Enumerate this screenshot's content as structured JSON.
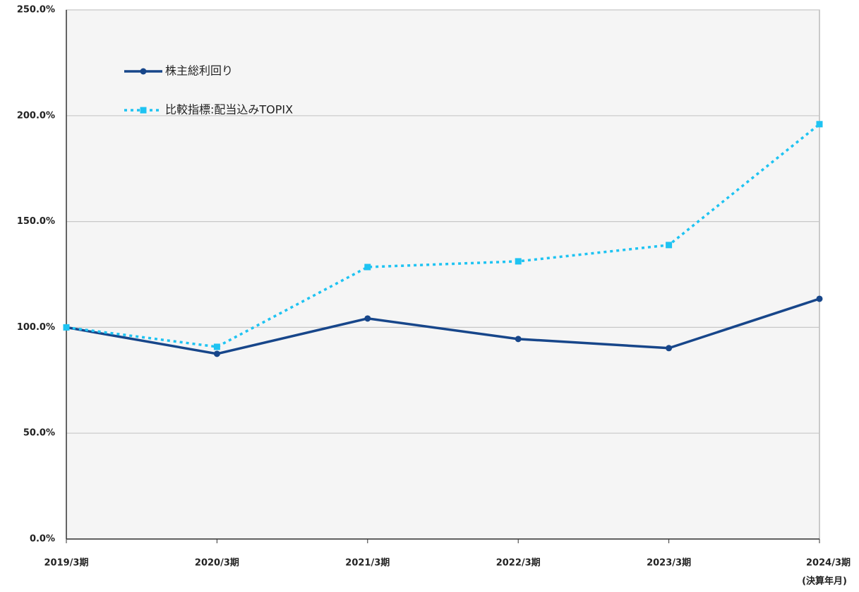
{
  "chart_data": {
    "type": "line",
    "categories": [
      "2019/3期",
      "2020/3期",
      "2021/3期",
      "2022/3期",
      "2023/3期",
      "2024/3期"
    ],
    "x_label": "(決算年月)",
    "series": [
      {
        "name": "株主総利回り",
        "color": "#17468a",
        "dash": "solid",
        "marker": "circle",
        "values": [
          100,
          87.5,
          104.2,
          94.5,
          90.2,
          113.5
        ]
      },
      {
        "name": "比較指標:配当込みTOPIX",
        "color": "#1ec3f2",
        "dash": "dotted",
        "marker": "square",
        "values": [
          100,
          90.8,
          128.5,
          131.2,
          138.9,
          196
        ]
      }
    ],
    "ylim": [
      0,
      250
    ],
    "yticks": [
      {
        "value": 0,
        "label": "0.0%"
      },
      {
        "value": 50,
        "label": "50.0%"
      },
      {
        "value": 100,
        "label": "100.0%"
      },
      {
        "value": 150,
        "label": "150.0%"
      },
      {
        "value": 200,
        "label": "200.0%"
      },
      {
        "value": 250,
        "label": "250.0%"
      }
    ],
    "grid": true,
    "legend": "upper left"
  }
}
